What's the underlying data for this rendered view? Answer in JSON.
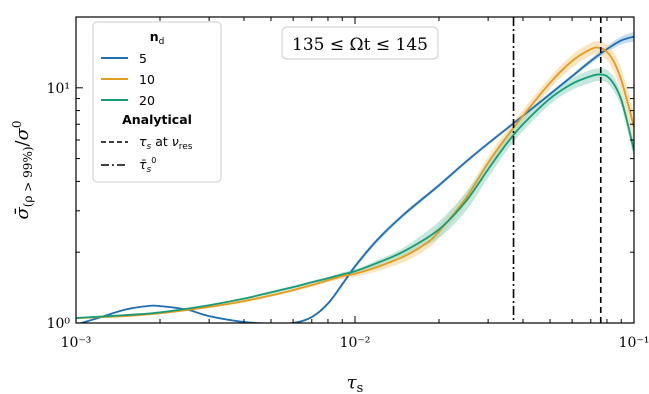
{
  "chart_data": {
    "type": "line",
    "title": "",
    "annotation": "135 ≤ Ωt ≤ 145",
    "xlabel": "τ_s",
    "ylabel": "σ̄_(ρ>99%)/σ⁰",
    "xscale": "log",
    "yscale": "log",
    "xlim": [
      0.001,
      0.1
    ],
    "ylim": [
      1.0,
      20.0
    ],
    "xticks": [
      {
        "value": 0.001,
        "label": "10⁻³"
      },
      {
        "value": 0.01,
        "label": "10⁻²"
      },
      {
        "value": 0.1,
        "label": "10⁻¹"
      }
    ],
    "yticks": [
      {
        "value": 1,
        "label": "10⁰"
      },
      {
        "value": 10,
        "label": "10¹"
      }
    ],
    "legend": {
      "placement": "top-left",
      "series_title": "n_d",
      "analytical_title": "Analytical",
      "analytical_entries": [
        {
          "label": "τs at ν_res",
          "style": "dashed"
        },
        {
          "label": "τ̄s⁰",
          "style": "dashdot"
        }
      ]
    },
    "series": [
      {
        "name": "5",
        "color": "#1f6fb4",
        "band_color": "#9cc3e6",
        "x": [
          0.001,
          0.0012,
          0.0015,
          0.0018,
          0.002,
          0.0025,
          0.003,
          0.004,
          0.005,
          0.006,
          0.007,
          0.008,
          0.009,
          0.01,
          0.012,
          0.015,
          0.02,
          0.025,
          0.03,
          0.04,
          0.05,
          0.06,
          0.07,
          0.08,
          0.09,
          0.1
        ],
        "y": [
          0.985,
          1.05,
          1.14,
          1.18,
          1.18,
          1.14,
          1.07,
          1.01,
          0.995,
          1.0,
          1.06,
          1.21,
          1.46,
          1.74,
          2.25,
          2.9,
          3.85,
          4.85,
          5.8,
          7.6,
          9.4,
          11.2,
          13.0,
          14.6,
          15.9,
          16.5
        ],
        "band": [
          0.01,
          0.01,
          0.01,
          0.01,
          0.01,
          0.01,
          0.01,
          0.01,
          0.01,
          0.01,
          0.01,
          0.02,
          0.03,
          0.04,
          0.05,
          0.06,
          0.07,
          0.08,
          0.09,
          0.12,
          0.15,
          0.2,
          0.3,
          0.45,
          0.6,
          0.8
        ]
      },
      {
        "name": "10",
        "color": "#e39c1e",
        "band_color": "#f5d39a",
        "x": [
          0.001,
          0.0015,
          0.002,
          0.003,
          0.004,
          0.005,
          0.006,
          0.007,
          0.008,
          0.009,
          0.01,
          0.012,
          0.015,
          0.018,
          0.02,
          0.025,
          0.03,
          0.035,
          0.04,
          0.05,
          0.06,
          0.07,
          0.075,
          0.08,
          0.085,
          0.09,
          0.095,
          0.1
        ],
        "y": [
          1.05,
          1.07,
          1.1,
          1.17,
          1.24,
          1.31,
          1.38,
          1.45,
          1.52,
          1.58,
          1.62,
          1.73,
          1.92,
          2.18,
          2.45,
          3.4,
          4.8,
          6.2,
          7.6,
          10.5,
          13.0,
          14.6,
          14.8,
          14.2,
          12.8,
          10.8,
          8.6,
          6.8
        ],
        "band": [
          0.01,
          0.01,
          0.01,
          0.01,
          0.02,
          0.02,
          0.02,
          0.03,
          0.03,
          0.04,
          0.05,
          0.07,
          0.1,
          0.13,
          0.15,
          0.2,
          0.3,
          0.4,
          0.45,
          0.6,
          0.8,
          0.9,
          1.0,
          1.1,
          1.2,
          1.2,
          1.1,
          1.0
        ]
      },
      {
        "name": "20",
        "color": "#179c78",
        "band_color": "#9dd8c6",
        "x": [
          0.001,
          0.0015,
          0.002,
          0.003,
          0.004,
          0.005,
          0.006,
          0.007,
          0.008,
          0.009,
          0.01,
          0.012,
          0.015,
          0.02,
          0.025,
          0.03,
          0.035,
          0.04,
          0.05,
          0.06,
          0.07,
          0.075,
          0.08,
          0.085,
          0.09,
          0.095,
          0.1
        ],
        "y": [
          1.05,
          1.08,
          1.11,
          1.19,
          1.27,
          1.35,
          1.42,
          1.49,
          1.55,
          1.61,
          1.66,
          1.8,
          2.02,
          2.5,
          3.3,
          4.5,
          5.8,
          7.0,
          9.0,
          10.4,
          11.2,
          11.4,
          11.2,
          10.3,
          8.9,
          7.0,
          5.4
        ],
        "band": [
          0.01,
          0.01,
          0.01,
          0.01,
          0.01,
          0.02,
          0.02,
          0.02,
          0.02,
          0.03,
          0.03,
          0.05,
          0.08,
          0.2,
          0.3,
          0.35,
          0.4,
          0.45,
          0.5,
          0.6,
          0.7,
          0.7,
          0.7,
          0.7,
          0.6,
          0.5,
          0.4
        ]
      }
    ],
    "vlines": [
      {
        "x": 0.037,
        "style": "dashdot",
        "color": "#000000"
      },
      {
        "x": 0.076,
        "style": "dashed",
        "color": "#000000"
      }
    ]
  }
}
